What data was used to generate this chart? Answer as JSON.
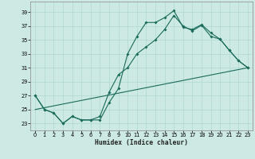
{
  "xlabel": "Humidex (Indice chaleur)",
  "background_color": "#cce9e4",
  "grid_color": "#b0d8d0",
  "line_color": "#1a6b5a",
  "xlim": [
    -0.5,
    23.5
  ],
  "ylim": [
    22.0,
    40.5
  ],
  "yticks": [
    23,
    25,
    27,
    29,
    31,
    33,
    35,
    37,
    39
  ],
  "xticks": [
    0,
    1,
    2,
    3,
    4,
    5,
    6,
    7,
    8,
    9,
    10,
    11,
    12,
    13,
    14,
    15,
    16,
    17,
    18,
    19,
    20,
    21,
    22,
    23
  ],
  "line1_x": [
    0,
    1,
    2,
    3,
    4,
    5,
    6,
    7,
    8,
    9,
    10,
    11,
    12,
    13,
    14,
    15,
    16,
    17,
    18,
    19,
    20,
    21,
    22,
    23
  ],
  "line1_y": [
    27,
    25,
    24.5,
    23,
    24,
    23.5,
    23.5,
    23.5,
    26,
    28,
    33,
    35.5,
    37.5,
    37.5,
    38.2,
    39.2,
    36.8,
    36.5,
    37.2,
    36,
    35.1,
    33.5,
    32,
    31
  ],
  "line2_x": [
    0,
    1,
    2,
    3,
    4,
    5,
    6,
    7,
    8,
    9,
    10,
    11,
    12,
    13,
    14,
    15,
    16,
    17,
    18,
    19,
    20,
    21,
    22,
    23
  ],
  "line2_y": [
    27,
    25,
    24.5,
    23,
    24,
    23.5,
    23.5,
    24,
    27.5,
    30,
    31,
    33,
    34,
    35,
    36.5,
    38.5,
    37,
    36.3,
    37.1,
    35.5,
    35.1,
    33.5,
    32,
    31
  ],
  "line3_x": [
    0,
    23
  ],
  "line3_y": [
    25,
    31
  ],
  "figsize": [
    3.2,
    2.0
  ],
  "dpi": 100
}
